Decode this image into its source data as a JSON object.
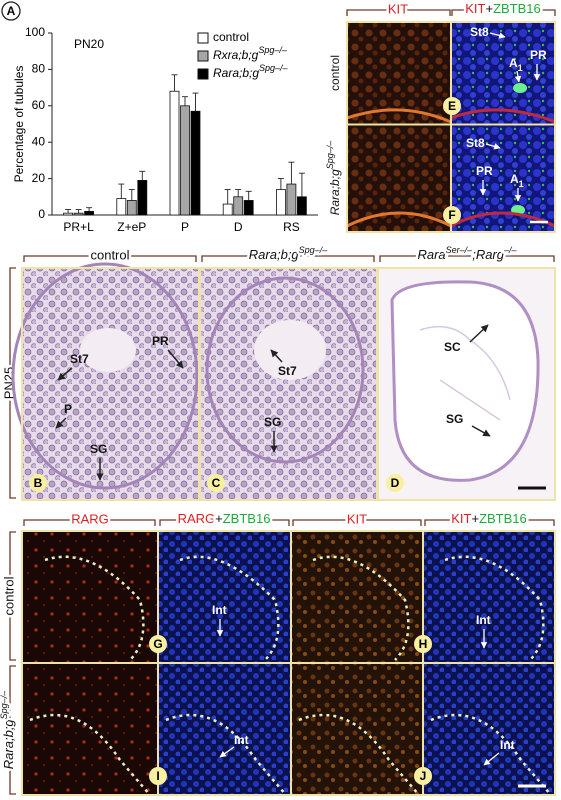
{
  "chart_data": {
    "type": "bar",
    "panel": "A",
    "title": "PN20",
    "ylabel": "Percentage of tubules",
    "categories": [
      "PR+L",
      "Z+eP",
      "P",
      "D",
      "RS"
    ],
    "series": [
      {
        "name": "control",
        "color": "#ffffff",
        "values": [
          1,
          9,
          68,
          6,
          14
        ],
        "errors": [
          2,
          8,
          9,
          8,
          6
        ]
      },
      {
        "name": "Rxra;b;g",
        "name_sup": "Spg–/–",
        "color": "#a6a6a6",
        "values": [
          1,
          8,
          60,
          10,
          17
        ],
        "errors": [
          2,
          6,
          5,
          4,
          12
        ]
      },
      {
        "name": "Rara;b;g",
        "name_sup": "Spg–/–",
        "color": "#000000",
        "values": [
          2,
          19,
          57,
          8,
          10
        ],
        "errors": [
          2,
          5,
          10,
          5,
          13
        ]
      }
    ],
    "ylim": [
      0,
      100
    ],
    "yticks": [
      0,
      20,
      40,
      60,
      80,
      100
    ],
    "legend": "upper right",
    "grid": false
  },
  "markers": {
    "kit": "KIT",
    "kit_zbtb16": [
      "KIT",
      "+",
      "ZBTB16"
    ],
    "rarg": "RARG",
    "rarg_zbtb16": [
      "RARG",
      "+",
      "ZBTB16"
    ]
  },
  "genotypes": {
    "control": "control",
    "rara": [
      "Rara;b;g",
      "Spg–/–"
    ],
    "double": [
      "Rara",
      "Ser–/–",
      ";Rarg",
      "–/–"
    ]
  },
  "stage": "PN25",
  "panel_letters": [
    "B",
    "C",
    "D",
    "E",
    "F",
    "G",
    "H",
    "I",
    "J"
  ],
  "annotations": {
    "E": [
      "St8",
      "PR",
      [
        "A",
        "1"
      ]
    ],
    "F": [
      "St8",
      "PR",
      [
        "A",
        "1"
      ]
    ],
    "B": [
      "PR",
      "St7",
      "P",
      "SG"
    ],
    "C": [
      "St7",
      "SG"
    ],
    "D": [
      "SC",
      "SG"
    ],
    "G": [
      "Int"
    ],
    "H": [
      "Int"
    ],
    "I": [
      "Int"
    ],
    "J": [
      "Int"
    ]
  }
}
